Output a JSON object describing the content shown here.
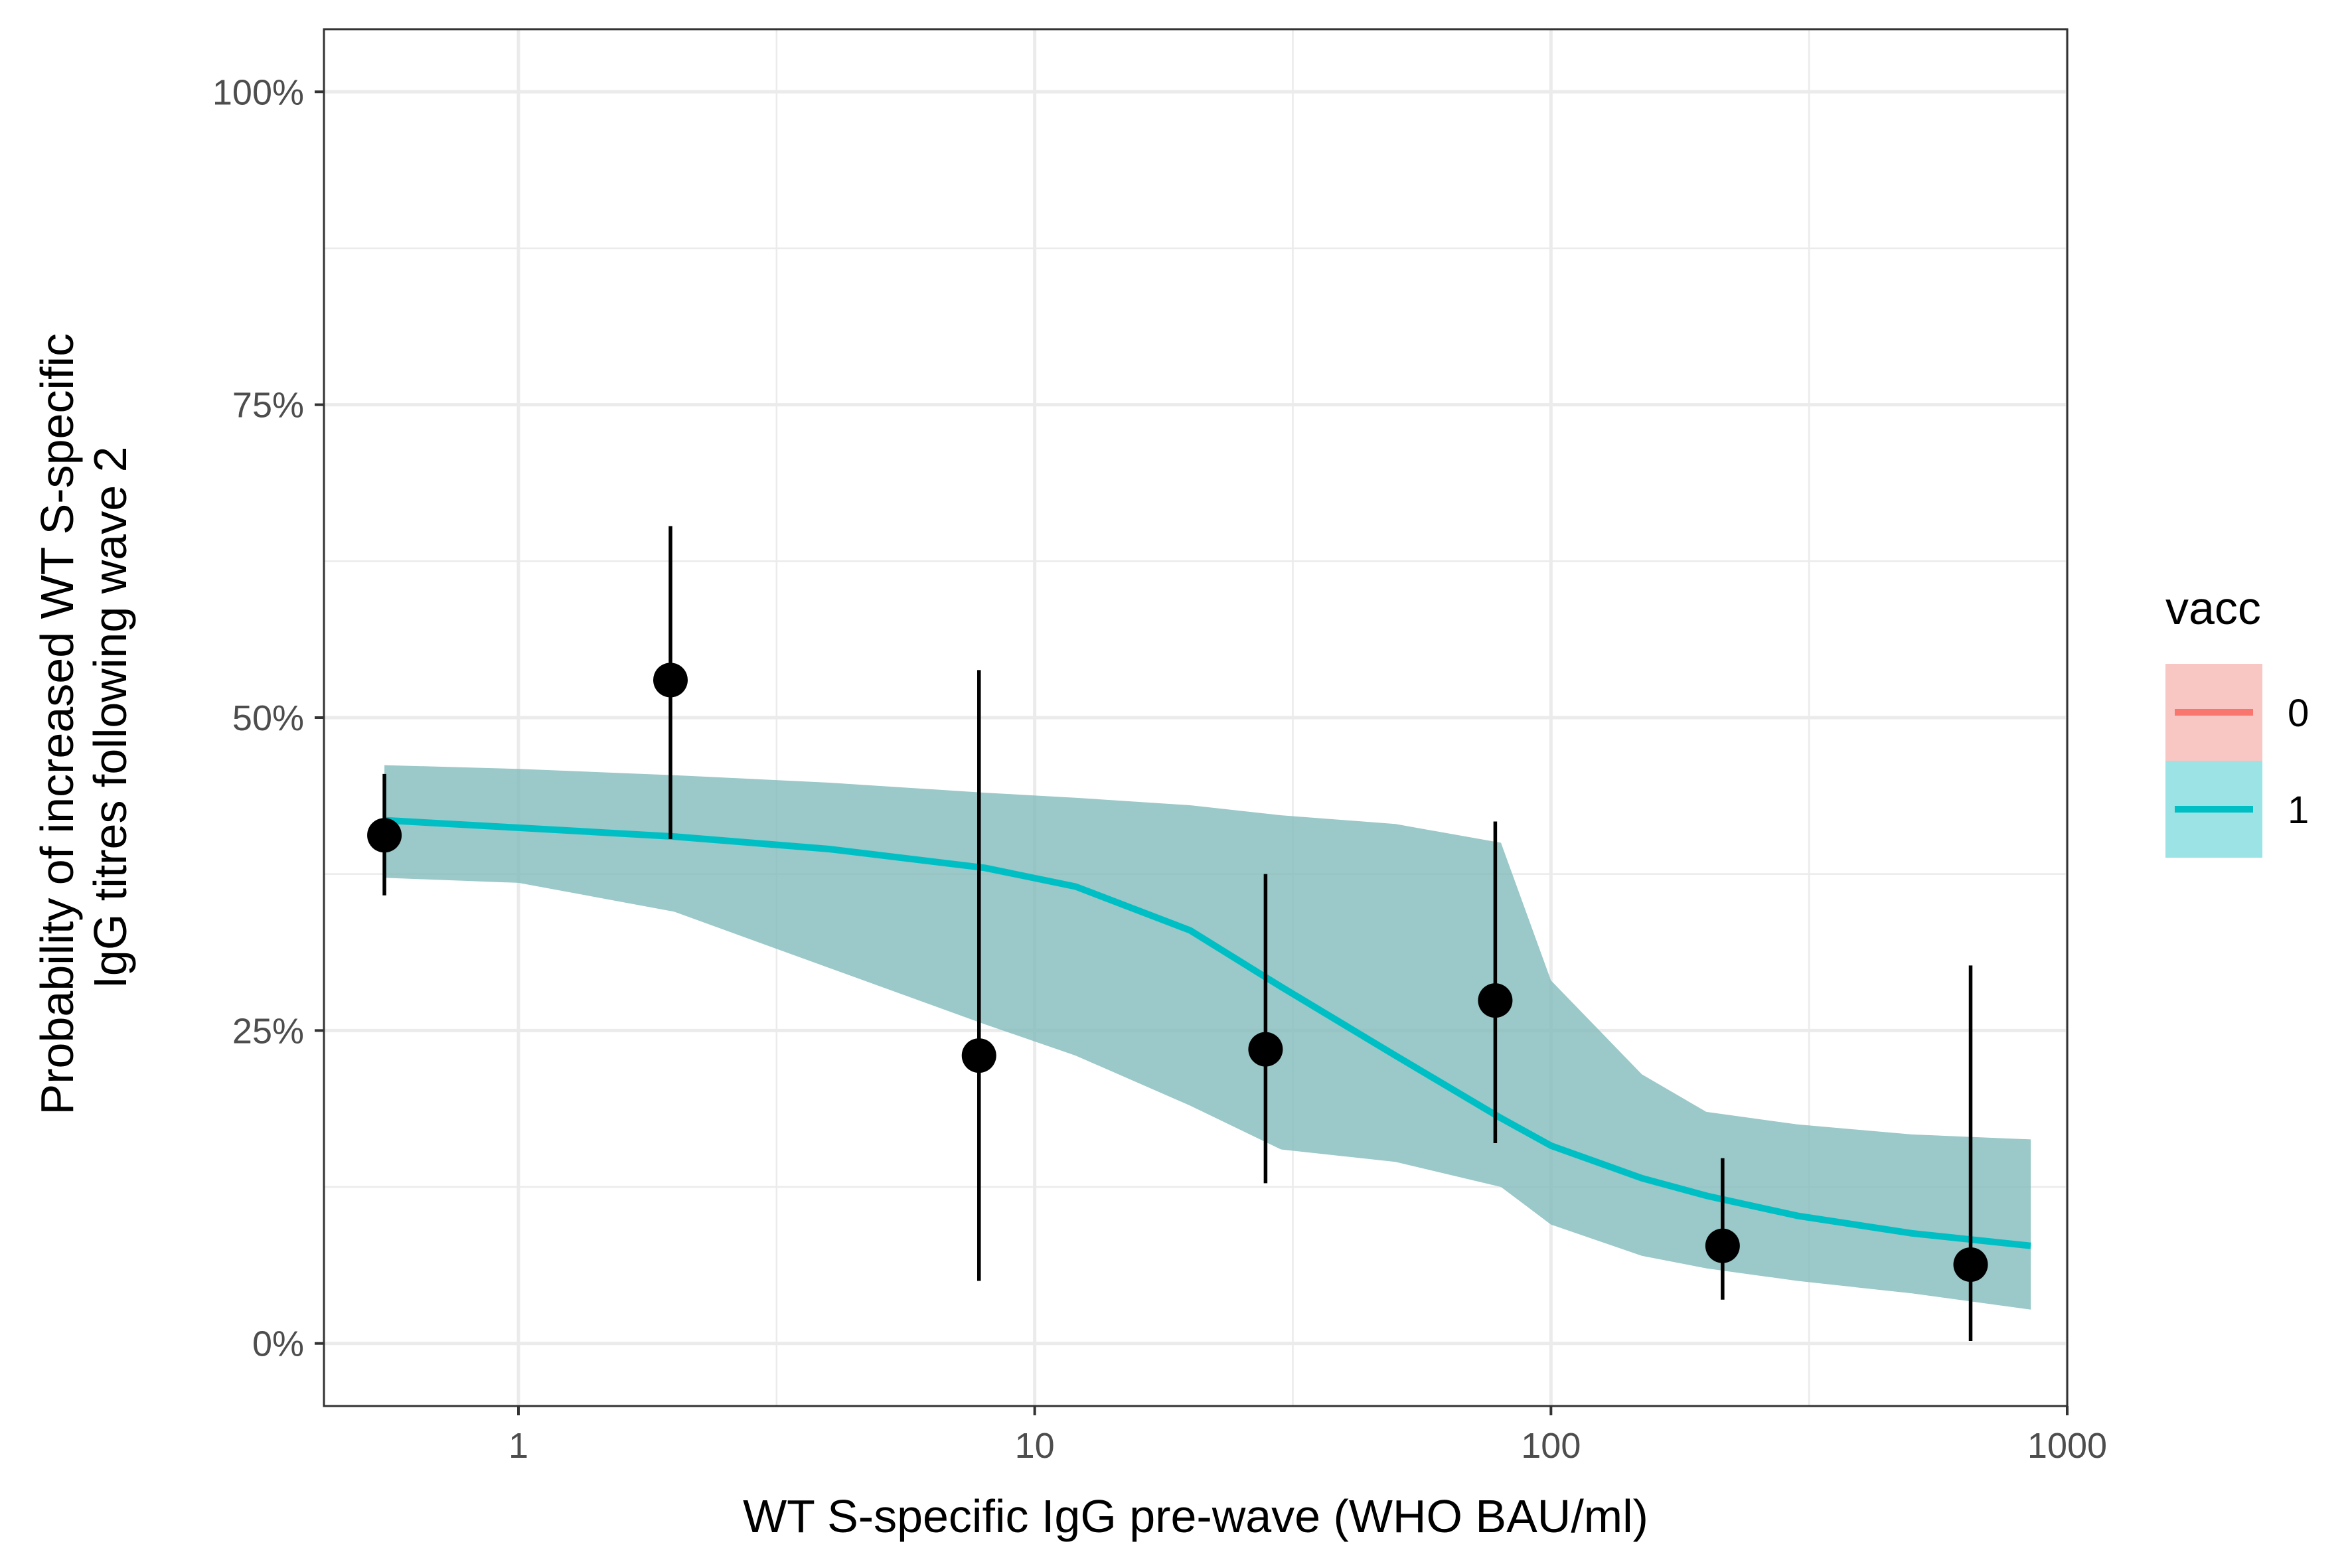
{
  "chart_data": {
    "type": "scatter",
    "xlabel": "WT S-specific IgG pre-wave (WHO BAU/ml)",
    "ylabel_lines": [
      "Probability of increased WT S-specific",
      "IgG titres following wave 2"
    ],
    "x_scale": "log10",
    "xlim": [
      0.42,
      1000
    ],
    "ylim": [
      -0.05,
      1.05
    ],
    "grid": true,
    "x_ticks": [
      {
        "value": 1,
        "label": "1"
      },
      {
        "value": 10,
        "label": "10"
      },
      {
        "value": 100,
        "label": "100"
      },
      {
        "value": 1000,
        "label": "1000"
      }
    ],
    "x_minor_ticks": [
      0.3162,
      3.162,
      31.62,
      316.2
    ],
    "y_ticks": [
      {
        "value": 0,
        "label": "0%"
      },
      {
        "value": 0.25,
        "label": "25%"
      },
      {
        "value": 0.5,
        "label": "50%"
      },
      {
        "value": 0.75,
        "label": "75%"
      },
      {
        "value": 1,
        "label": "100%"
      }
    ],
    "y_minor_ticks": [
      0.125,
      0.375,
      0.625,
      0.875
    ],
    "points": [
      {
        "x": 0.55,
        "y": 0.406,
        "lo": 0.358,
        "hi": 0.455
      },
      {
        "x": 1.97,
        "y": 0.53,
        "lo": 0.403,
        "hi": 0.653
      },
      {
        "x": 7.8,
        "y": 0.23,
        "lo": 0.05,
        "hi": 0.538
      },
      {
        "x": 28.0,
        "y": 0.235,
        "lo": 0.128,
        "hi": 0.375
      },
      {
        "x": 78.0,
        "y": 0.274,
        "lo": 0.16,
        "hi": 0.417
      },
      {
        "x": 215.0,
        "y": 0.078,
        "lo": 0.035,
        "hi": 0.148
      },
      {
        "x": 650.0,
        "y": 0.063,
        "lo": 0.002,
        "hi": 0.302
      }
    ],
    "fit_line": {
      "name": "1",
      "color": "#00BFC4",
      "band_color": "#7FB8B8",
      "x": [
        0.55,
        1,
        2,
        4,
        8,
        12,
        20,
        30,
        50,
        80,
        100,
        150,
        200,
        300,
        500,
        850
      ],
      "y": [
        0.418,
        0.412,
        0.405,
        0.395,
        0.38,
        0.365,
        0.33,
        0.285,
        0.23,
        0.18,
        0.158,
        0.132,
        0.118,
        0.102,
        0.088,
        0.078
      ],
      "lower": [
        0.372,
        0.368,
        0.345,
        0.3,
        0.255,
        0.23,
        0.19,
        0.155,
        0.145,
        0.125,
        0.095,
        0.07,
        0.06,
        0.05,
        0.04,
        0.027
      ],
      "upper": [
        0.462,
        0.459,
        0.454,
        0.448,
        0.44,
        0.436,
        0.43,
        0.422,
        0.415,
        0.4,
        0.29,
        0.215,
        0.185,
        0.175,
        0.167,
        0.163
      ]
    },
    "legend": {
      "title": "vacc",
      "position": "right",
      "entries": [
        {
          "label": "0",
          "line_color": "#F8766D",
          "fill_color": "#F8C6C3"
        },
        {
          "label": "1",
          "line_color": "#00BFC4",
          "fill_color": "#9BE3E4"
        }
      ]
    },
    "colors": {
      "point": "#000000",
      "grid": "#EBEBEB",
      "panel_border": "#333333"
    }
  }
}
